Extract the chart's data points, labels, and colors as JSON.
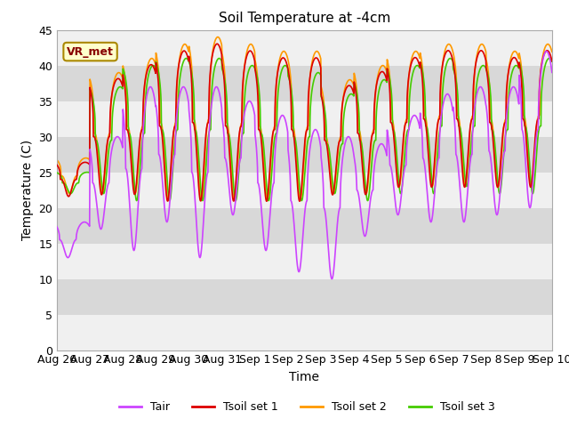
{
  "title": "Soil Temperature at -4cm",
  "xlabel": "Time",
  "ylabel": "Temperature (C)",
  "ylim": [
    0,
    45
  ],
  "yticks": [
    0,
    5,
    10,
    15,
    20,
    25,
    30,
    35,
    40,
    45
  ],
  "colors": {
    "Tair": "#cc44ff",
    "Tsoil1": "#dd0000",
    "Tsoil2": "#ff9900",
    "Tsoil3": "#44cc00"
  },
  "legend_labels": [
    "Tair",
    "Tsoil set 1",
    "Tsoil set 2",
    "Tsoil set 3"
  ],
  "annotation_text": "VR_met",
  "annotation_bbox_facecolor": "#ffffcc",
  "annotation_bbox_edgecolor": "#aa8800",
  "annotation_text_color": "#880000",
  "xtick_labels": [
    "Aug 26",
    "Aug 27",
    "Aug 28",
    "Aug 29",
    "Aug 30",
    "Aug 31",
    "Sep 1",
    "Sep 2",
    "Sep 3",
    "Sep 4",
    "Sep 5",
    "Sep 6",
    "Sep 7",
    "Sep 8",
    "Sep 9",
    "Sep 10"
  ],
  "band_colors": [
    "#f0f0f0",
    "#d8d8d8"
  ],
  "title_fontsize": 11,
  "axis_label_fontsize": 10,
  "tick_fontsize": 9,
  "n_days": 15,
  "tair_min": [
    13,
    17,
    14,
    18,
    13,
    19,
    14,
    11,
    10,
    16,
    19,
    18,
    18,
    19,
    20
  ],
  "tair_max": [
    18,
    30,
    37,
    37,
    37,
    35,
    33,
    31,
    30,
    29,
    33,
    36,
    37,
    37,
    42
  ],
  "tsoil2_min": [
    22,
    22,
    22,
    21,
    21,
    21,
    21,
    21,
    22,
    22,
    23,
    23,
    23,
    23,
    23
  ],
  "tsoil2_max": [
    27,
    39,
    41,
    43,
    44,
    43,
    42,
    42,
    38,
    40,
    42,
    43,
    43,
    42,
    43
  ],
  "tsoil3_min": [
    22,
    22,
    21,
    21,
    21,
    21,
    21,
    21,
    22,
    21,
    22,
    22,
    23,
    22,
    22
  ],
  "tsoil3_max": [
    25,
    37,
    40,
    41,
    41,
    40,
    40,
    39,
    36,
    38,
    40,
    41,
    40,
    40,
    41
  ]
}
